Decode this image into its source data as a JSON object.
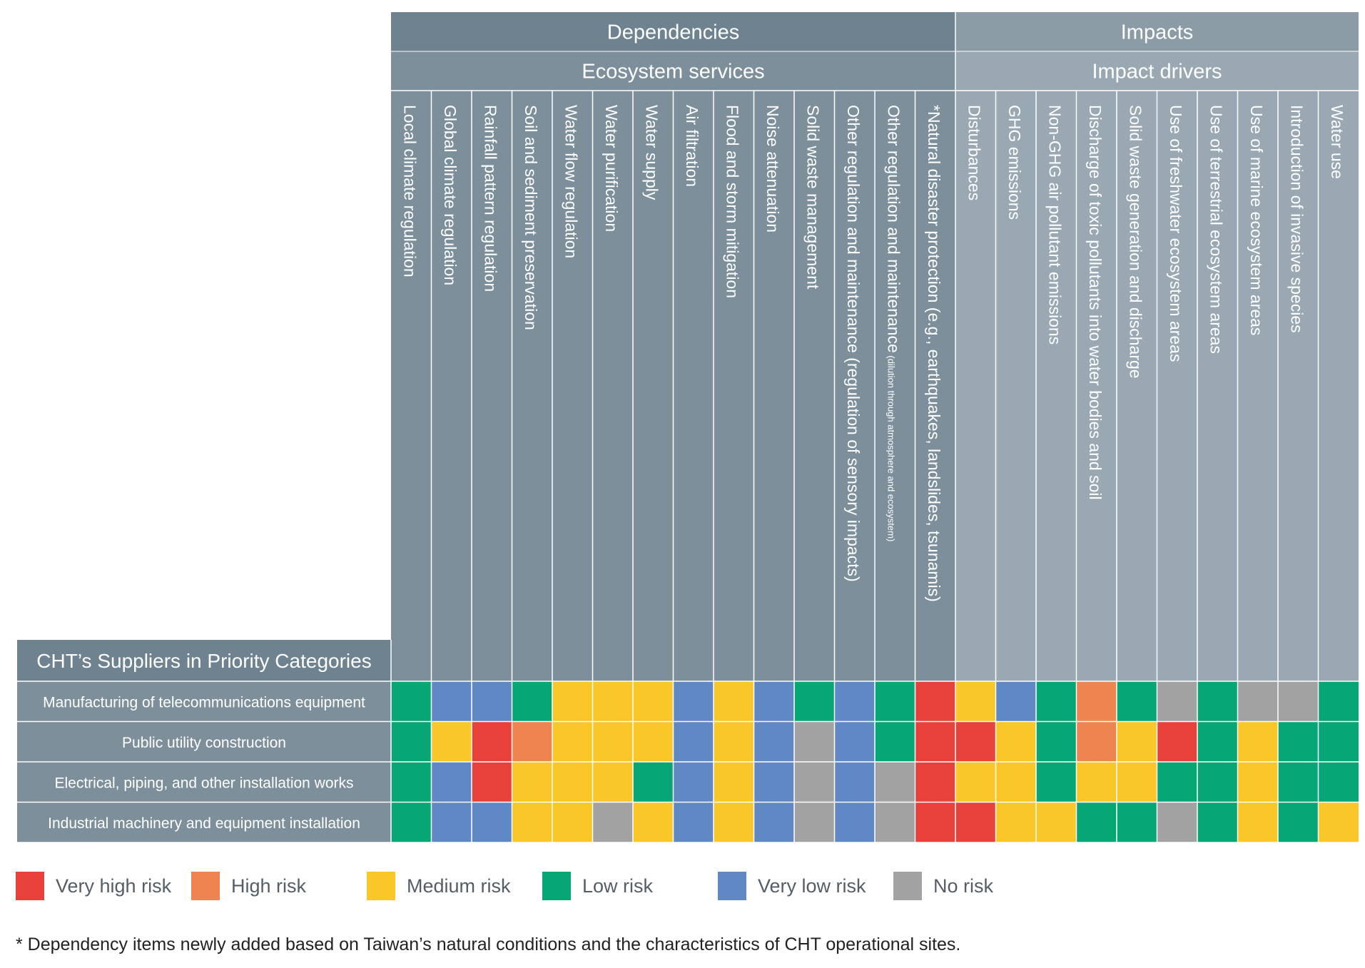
{
  "chart_data": {
    "type": "heatmap",
    "title": "",
    "header_groups": [
      {
        "label": "Dependencies",
        "sublabel": "Ecosystem services",
        "span": 14,
        "color": "#6e8290",
        "subcolor": "#7d8f9b"
      },
      {
        "label": "Impacts",
        "sublabel": "Impact drivers",
        "span": 10,
        "color": "#8c9ca7",
        "subcolor": "#99a8b2"
      }
    ],
    "row_header": "CHT’s Suppliers in Priority Categories",
    "columns": [
      {
        "label": "Local climate regulation",
        "note": ""
      },
      {
        "label": "Global climate regulation",
        "note": ""
      },
      {
        "label": "Rainfall pattern regulation",
        "note": ""
      },
      {
        "label": "Soil and sediment preservation",
        "note": ""
      },
      {
        "label": "Water flow regulation",
        "note": ""
      },
      {
        "label": "Water purification",
        "note": ""
      },
      {
        "label": "Water supply",
        "note": ""
      },
      {
        "label": "Air filtration",
        "note": ""
      },
      {
        "label": "Flood and storm mitigation",
        "note": ""
      },
      {
        "label": "Noise attenuation",
        "note": ""
      },
      {
        "label": "Solid waste management",
        "note": ""
      },
      {
        "label": "Other regulation and maintenance (regulation of sensory impacts)",
        "note": ""
      },
      {
        "label": "Other regulation and maintenance",
        "note": " (dilution through atmosphere and ecosystem)"
      },
      {
        "label": "*Natural disaster protection (e.g., earthquakes, landslides, tsunamis)",
        "note": ""
      },
      {
        "label": "Disturbances",
        "note": ""
      },
      {
        "label": "GHG emissions",
        "note": ""
      },
      {
        "label": "Non-GHG air pollutant emissions",
        "note": ""
      },
      {
        "label": "Discharge of toxic pollutants into water bodies and soil",
        "note": ""
      },
      {
        "label": "Solid waste generation and discharge",
        "note": ""
      },
      {
        "label": "Use of freshwater ecosystem areas",
        "note": ""
      },
      {
        "label": "Use of terrestrial ecosystem areas",
        "note": ""
      },
      {
        "label": "Use of marine ecosystem areas",
        "note": ""
      },
      {
        "label": "Introduction of invasive species",
        "note": ""
      },
      {
        "label": "Water use",
        "note": ""
      }
    ],
    "rows": [
      "Manufacturing of telecommunications equipment",
      "Public utility construction",
      "Electrical, piping, and other installation works",
      "Industrial machinery and equipment installation"
    ],
    "values": [
      [
        "Low",
        "Very low",
        "Very low",
        "Low",
        "Medium",
        "Medium",
        "Medium",
        "Very low",
        "Medium",
        "Very low",
        "Low",
        "Very low",
        "Low",
        "Very high",
        "Medium",
        "Very low",
        "Low",
        "High",
        "Low",
        "No",
        "Low",
        "No",
        "No",
        "Low"
      ],
      [
        "Low",
        "Medium",
        "Very high",
        "High",
        "Medium",
        "Medium",
        "Medium",
        "Very low",
        "Medium",
        "Very low",
        "No",
        "Very low",
        "Low",
        "Very high",
        "Very high",
        "Medium",
        "Low",
        "High",
        "Medium",
        "Very high",
        "Low",
        "Medium",
        "Low",
        "Low"
      ],
      [
        "Low",
        "Very low",
        "Very high",
        "Medium",
        "Medium",
        "Medium",
        "Low",
        "Very low",
        "Medium",
        "Very low",
        "No",
        "Very low",
        "No",
        "Very high",
        "Medium",
        "Medium",
        "Low",
        "Medium",
        "Medium",
        "Low",
        "Low",
        "Medium",
        "Low",
        "Low"
      ],
      [
        "Low",
        "Very low",
        "Very low",
        "Medium",
        "Medium",
        "No",
        "Medium",
        "Very low",
        "Medium",
        "Very low",
        "No",
        "Very low",
        "No",
        "Very high",
        "Very high",
        "Medium",
        "Medium",
        "Low",
        "Low",
        "No",
        "Low",
        "Medium",
        "Low",
        "Medium"
      ]
    ],
    "legend": [
      {
        "key": "Very high",
        "label": "Very high risk",
        "color": "#e8403a"
      },
      {
        "key": "High",
        "label": "High risk",
        "color": "#ee8450"
      },
      {
        "key": "Medium",
        "label": "Medium risk",
        "color": "#f9c728"
      },
      {
        "key": "Low",
        "label": "Low risk",
        "color": "#06a675"
      },
      {
        "key": "Very low",
        "label": "Very low risk",
        "color": "#6088c4"
      },
      {
        "key": "No",
        "label": "No risk",
        "color": "#a2a2a2"
      }
    ],
    "footnote": "* Dependency items newly added based on Taiwan’s natural conditions and the characteristics of CHT operational sites."
  }
}
